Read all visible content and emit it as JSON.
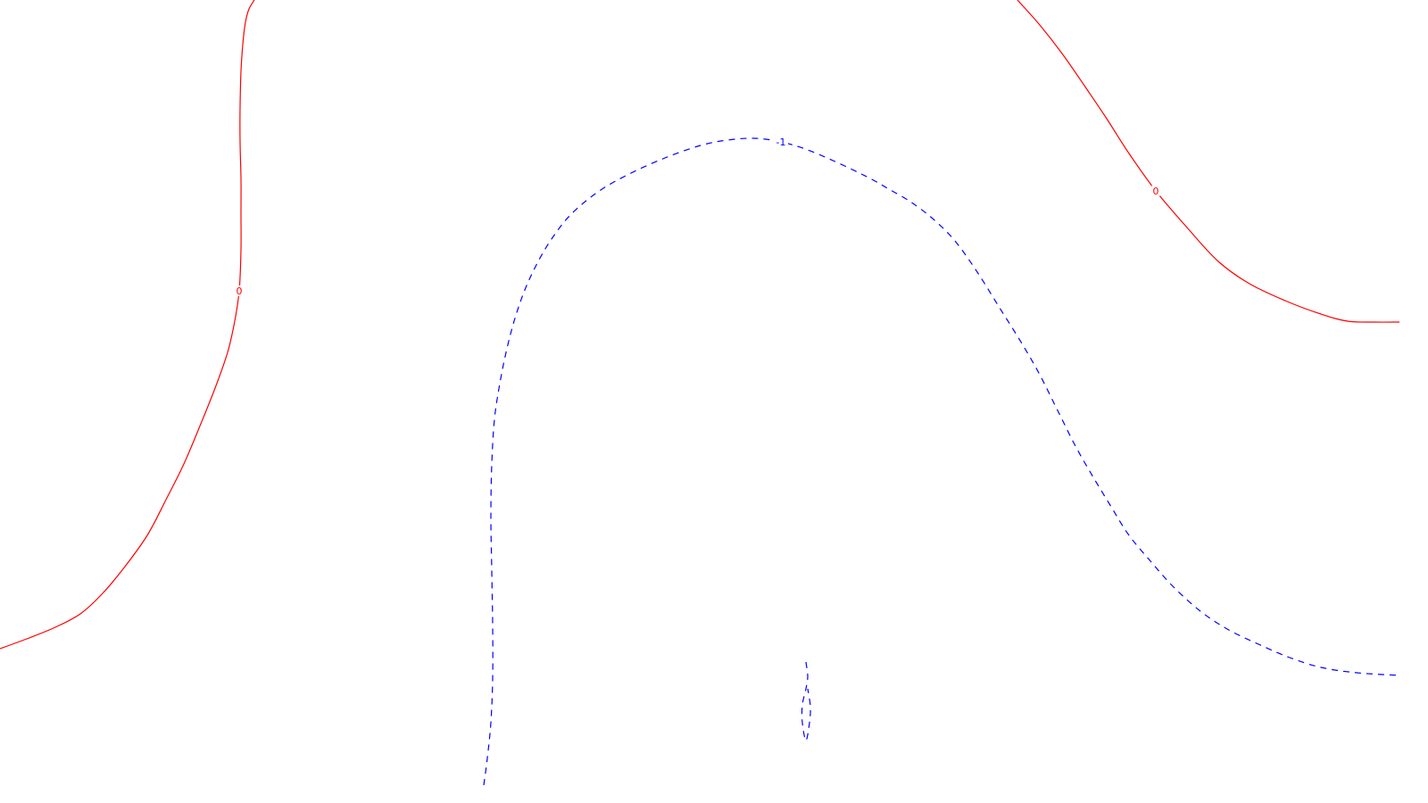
{
  "colors": {
    "background": "#ffffff",
    "zero_level": "#ff0000",
    "negative_level": "#0000ff"
  },
  "chart_data": {
    "type": "contour",
    "title": "",
    "xlabel": "",
    "ylabel": "",
    "grid": false,
    "contours": [
      {
        "level": 0,
        "label": "0",
        "color": "#ff0000",
        "style": "solid",
        "paths": [
          {
            "name": "zero-left",
            "points": [
              [
                285,
                0
              ],
              [
                279,
                10
              ],
              [
                275,
                25
              ],
              [
                272,
                50
              ],
              [
                270,
                80
              ],
              [
                269,
                120
              ],
              [
                269,
                160
              ],
              [
                270,
                200
              ],
              [
                270,
                240
              ],
              [
                270,
                280
              ],
              [
                268,
                326
              ],
              [
                263,
                360
              ],
              [
                255,
                395
              ],
              [
                241,
                435
              ],
              [
                225,
                475
              ],
              [
                206,
                520
              ],
              [
                186,
                560
              ],
              [
                165,
                600
              ],
              [
                140,
                635
              ],
              [
                115,
                665
              ],
              [
                90,
                688
              ],
              [
                62,
                703
              ],
              [
                30,
                716
              ],
              [
                0,
                727
              ]
            ],
            "label_at": 10
          },
          {
            "name": "zero-right",
            "points": [
              [
                1140,
                0
              ],
              [
                1165,
                28
              ],
              [
                1190,
                60
              ],
              [
                1215,
                96
              ],
              [
                1240,
                133
              ],
              [
                1265,
                172
              ],
              [
                1295,
                214
              ],
              [
                1330,
                255
              ],
              [
                1365,
                293
              ],
              [
                1400,
                318
              ],
              [
                1440,
                337
              ],
              [
                1480,
                352
              ],
              [
                1510,
                360
              ],
              [
                1540,
                361
              ],
              [
                1568,
                361
              ]
            ],
            "label_at": 6
          }
        ]
      },
      {
        "level": -1,
        "label": "-1",
        "color": "#0000ff",
        "style": "dashed",
        "paths": [
          {
            "name": "neg1-arch",
            "points": [
              [
                542,
                880
              ],
              [
                546,
                850
              ],
              [
                550,
                810
              ],
              [
                552,
                760
              ],
              [
                552,
                700
              ],
              [
                551,
                640
              ],
              [
                550,
                580
              ],
              [
                551,
                520
              ],
              [
                554,
                470
              ],
              [
                560,
                430
              ],
              [
                567,
                395
              ],
              [
                576,
                360
              ],
              [
                588,
                325
              ],
              [
                603,
                293
              ],
              [
                620,
                265
              ],
              [
                640,
                240
              ],
              [
                670,
                215
              ],
              [
                705,
                195
              ],
              [
                745,
                177
              ],
              [
                785,
                163
              ],
              [
                815,
                157
              ],
              [
                845,
                155
              ],
              [
                875,
                159
              ],
              [
                905,
                168
              ],
              [
                940,
                183
              ],
              [
                975,
                200
              ],
              [
                996,
                212
              ],
              [
                1020,
                226
              ],
              [
                1045,
                245
              ],
              [
                1070,
                270
              ],
              [
                1095,
                305
              ],
              [
                1120,
                345
              ],
              [
                1145,
                385
              ],
              [
                1165,
                420
              ],
              [
                1185,
                460
              ],
              [
                1205,
                500
              ],
              [
                1225,
                535
              ],
              [
                1245,
                568
              ],
              [
                1265,
                600
              ],
              [
                1290,
                630
              ],
              [
                1315,
                658
              ],
              [
                1345,
                685
              ],
              [
                1375,
                705
              ],
              [
                1410,
                722
              ],
              [
                1445,
                737
              ],
              [
                1480,
                748
              ],
              [
                1520,
                754
              ],
              [
                1568,
                757
              ]
            ],
            "label_at": 22
          },
          {
            "name": "neg1-small-loop",
            "points": [
              [
                903,
                742
              ],
              [
                905,
                758
              ],
              [
                903,
                772
              ],
              [
                899,
                790
              ],
              [
                899,
                810
              ],
              [
                903,
                830
              ],
              [
                907,
                810
              ],
              [
                908,
                792
              ],
              [
                905,
                772
              ]
            ],
            "label_at": null
          }
        ]
      }
    ]
  }
}
